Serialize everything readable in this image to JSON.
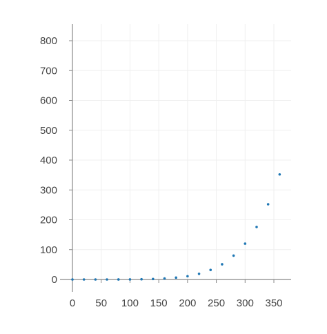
{
  "chart_data": {
    "type": "scatter",
    "title": "",
    "xlabel": "",
    "ylabel": "",
    "xlim": [
      0,
      380
    ],
    "ylim": [
      0,
      850
    ],
    "xticks": [
      0,
      50,
      100,
      150,
      200,
      250,
      300,
      350
    ],
    "yticks": [
      0,
      100,
      200,
      300,
      400,
      500,
      600,
      700,
      800
    ],
    "grid": true,
    "marker_color": "#1f77b4",
    "series": [
      {
        "x": [
          0,
          20,
          40,
          60,
          80,
          100,
          120,
          140,
          160,
          180,
          200,
          220,
          240,
          260,
          280,
          300,
          320,
          340,
          360
        ],
        "y": [
          0,
          0,
          0,
          0,
          0.1,
          0.3,
          0.7,
          1.6,
          3.3,
          6.2,
          11,
          19,
          32,
          51,
          80,
          120,
          176,
          252,
          352
        ]
      }
    ]
  }
}
